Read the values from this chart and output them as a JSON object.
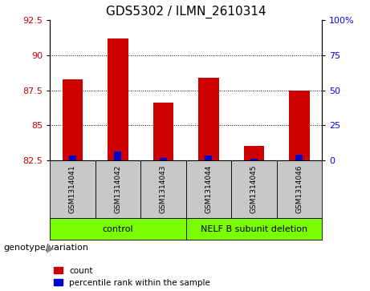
{
  "title": "GDS5302 / ILMN_2610314",
  "samples": [
    "GSM1314041",
    "GSM1314042",
    "GSM1314043",
    "GSM1314044",
    "GSM1314045",
    "GSM1314046"
  ],
  "count_values": [
    88.3,
    91.2,
    86.6,
    88.4,
    83.5,
    87.5
  ],
  "percentile_values": [
    3.5,
    6.0,
    1.5,
    3.5,
    0.8,
    3.8
  ],
  "ylim_left": [
    82.5,
    92.5
  ],
  "ylim_right": [
    0,
    100
  ],
  "yticks_left": [
    82.5,
    85.0,
    87.5,
    90.0,
    92.5
  ],
  "ytick_labels_left": [
    "82.5",
    "85",
    "87.5",
    "90",
    "92.5"
  ],
  "yticks_right": [
    0,
    25,
    50,
    75,
    100
  ],
  "ytick_labels_right": [
    "0",
    "25",
    "50",
    "75",
    "100%"
  ],
  "bar_bottom": 82.5,
  "red_color": "#cc0000",
  "blue_color": "#0000cc",
  "group_labels": [
    "control",
    "NELF B subunit deletion"
  ],
  "group_ranges": [
    [
      0,
      3
    ],
    [
      3,
      6
    ]
  ],
  "sample_box_color": "#c8c8c8",
  "legend_count": "count",
  "legend_percentile": "percentile rank within the sample",
  "genotype_label": "genotype/variation",
  "title_fontsize": 11
}
